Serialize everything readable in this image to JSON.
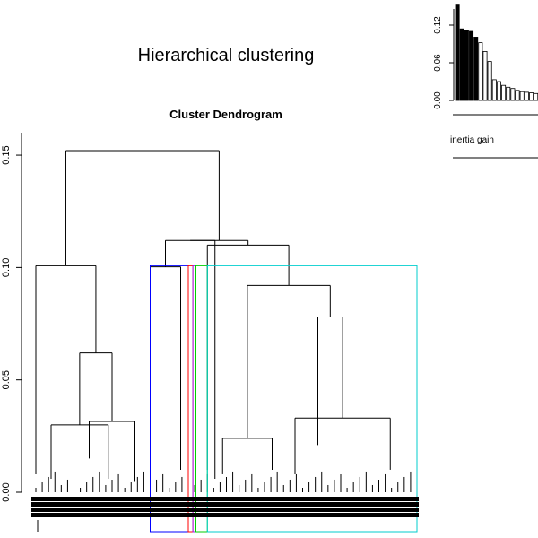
{
  "chart_data": [
    {
      "type": "dendrogram",
      "title": "Cluster Dendrogram",
      "ylim": [
        0,
        0.16
      ],
      "y_ticks": [
        0.0,
        0.05,
        0.1,
        0.15
      ],
      "y_tick_labels": [
        "0.00",
        "0.05",
        "0.10",
        "0.15"
      ],
      "cut_height": 0.1008,
      "merge_heights": [
        0.152,
        0.114,
        0.112,
        0.11,
        0.1008,
        0.092,
        0.078,
        0.062,
        0.033,
        0.03,
        0.024,
        0.021
      ],
      "clusters": [
        {
          "color": "#000000",
          "x_range": [
            0.0,
            0.3
          ]
        },
        {
          "color": "#0000ff",
          "x_range": [
            0.3,
            0.4
          ]
        },
        {
          "color": "#ff0000",
          "x_range": [
            0.4,
            0.412
          ]
        },
        {
          "color": "#a020f0",
          "x_range": [
            0.412,
            0.42
          ]
        },
        {
          "color": "#00cd00",
          "x_range": [
            0.42,
            0.45
          ]
        },
        {
          "color": "#00cdcd",
          "x_range": [
            0.45,
            1.0
          ]
        }
      ]
    },
    {
      "type": "bar",
      "xlabel": "inertia gain",
      "ylim": [
        0,
        0.14
      ],
      "y_ticks": [
        0.0,
        0.06,
        0.12
      ],
      "y_tick_labels": [
        "0.00",
        "0.06",
        "0.12"
      ],
      "values": [
        0.152,
        0.114,
        0.112,
        0.11,
        0.1008,
        0.092,
        0.078,
        0.062,
        0.033,
        0.03,
        0.024,
        0.021,
        0.019,
        0.016,
        0.014,
        0.013,
        0.012,
        0.011,
        0.01
      ],
      "highlighted_count": 5,
      "highlight_color": "#000000",
      "bar_color": "#ffffff"
    }
  ],
  "title": "Hierarchical clustering"
}
